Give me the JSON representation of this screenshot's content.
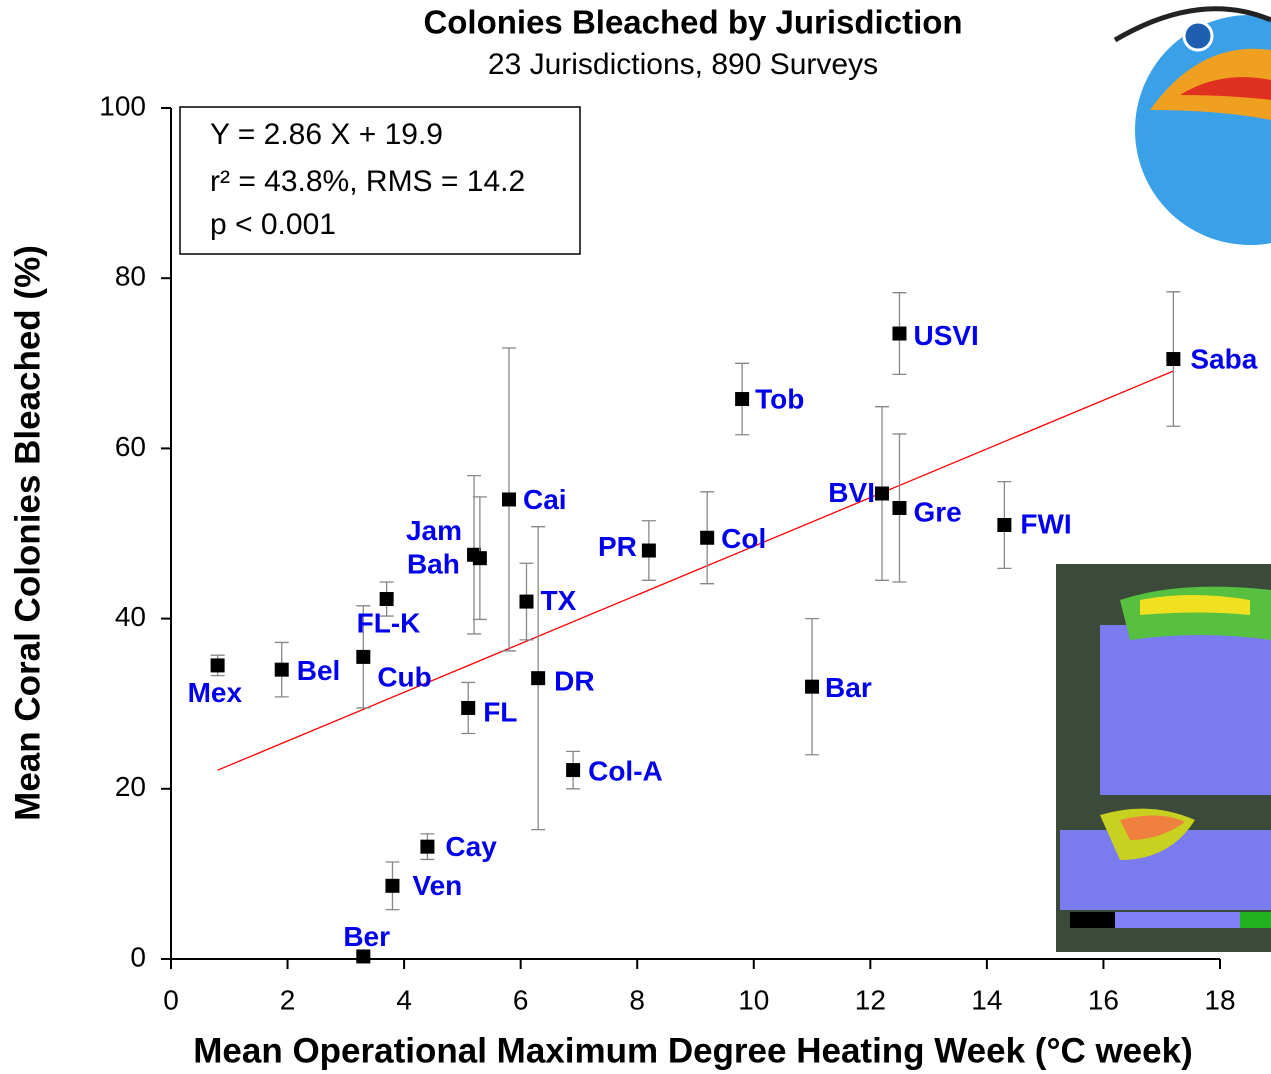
{
  "chart_data": {
    "type": "scatter",
    "title": "Colonies Bleached by Jurisdiction",
    "subtitle": "23 Jurisdictions, 890 Surveys",
    "xlabel": "Mean Operational Maximum Degree Heating Week (°C week)",
    "ylabel": "Mean Coral Colonies Bleached (%)",
    "annotation": [
      "Y = 2.86 X + 19.9",
      "r² = 43.8%, RMS = 14.2",
      "p < 0.001"
    ],
    "labels": [
      "Mex",
      "Bel",
      "Cub",
      "FL-K",
      "Ber",
      "Ven",
      "Cay",
      "FL",
      "Jam",
      "Bah",
      "Cai",
      "TX",
      "DR",
      "Col-A",
      "PR",
      "Col",
      "Tob",
      "Bar",
      "BVI",
      "USVI",
      "Gre",
      "FWI",
      "Saba"
    ],
    "x": [
      0.8,
      1.9,
      3.3,
      3.7,
      3.3,
      3.8,
      4.4,
      5.1,
      5.2,
      5.3,
      5.8,
      6.1,
      6.3,
      6.9,
      8.2,
      9.2,
      9.8,
      11,
      12.2,
      12.5,
      12.5,
      14.3,
      17.2
    ],
    "values": [
      34.5,
      34,
      35.5,
      42.3,
      0.3,
      8.6,
      13.2,
      29.5,
      47.5,
      47.1,
      54,
      42,
      33,
      22.2,
      48,
      49.5,
      65.8,
      32,
      54.7,
      73.5,
      53,
      51,
      70.5
    ],
    "errors": [
      1.2,
      3.2,
      6,
      2,
      0.5,
      2.8,
      1.5,
      3,
      9.3,
      7.2,
      17.8,
      4.5,
      17.8,
      2.2,
      3.5,
      5.4,
      4.2,
      8,
      10.2,
      4.8,
      8.7,
      5.1,
      7.9
    ],
    "marker_color": "#000000",
    "label_color": "#0000ee",
    "error_color": "#888888",
    "fit": {
      "slope": 2.86,
      "intercept": 19.9,
      "color": "#ff0000"
    },
    "xlim": [
      0,
      18
    ],
    "xticks": [
      0,
      2,
      4,
      6,
      8,
      10,
      12,
      14,
      16,
      18
    ],
    "ylim": [
      0,
      100
    ],
    "yticks": [
      0,
      20,
      40,
      60,
      80,
      100
    ]
  }
}
